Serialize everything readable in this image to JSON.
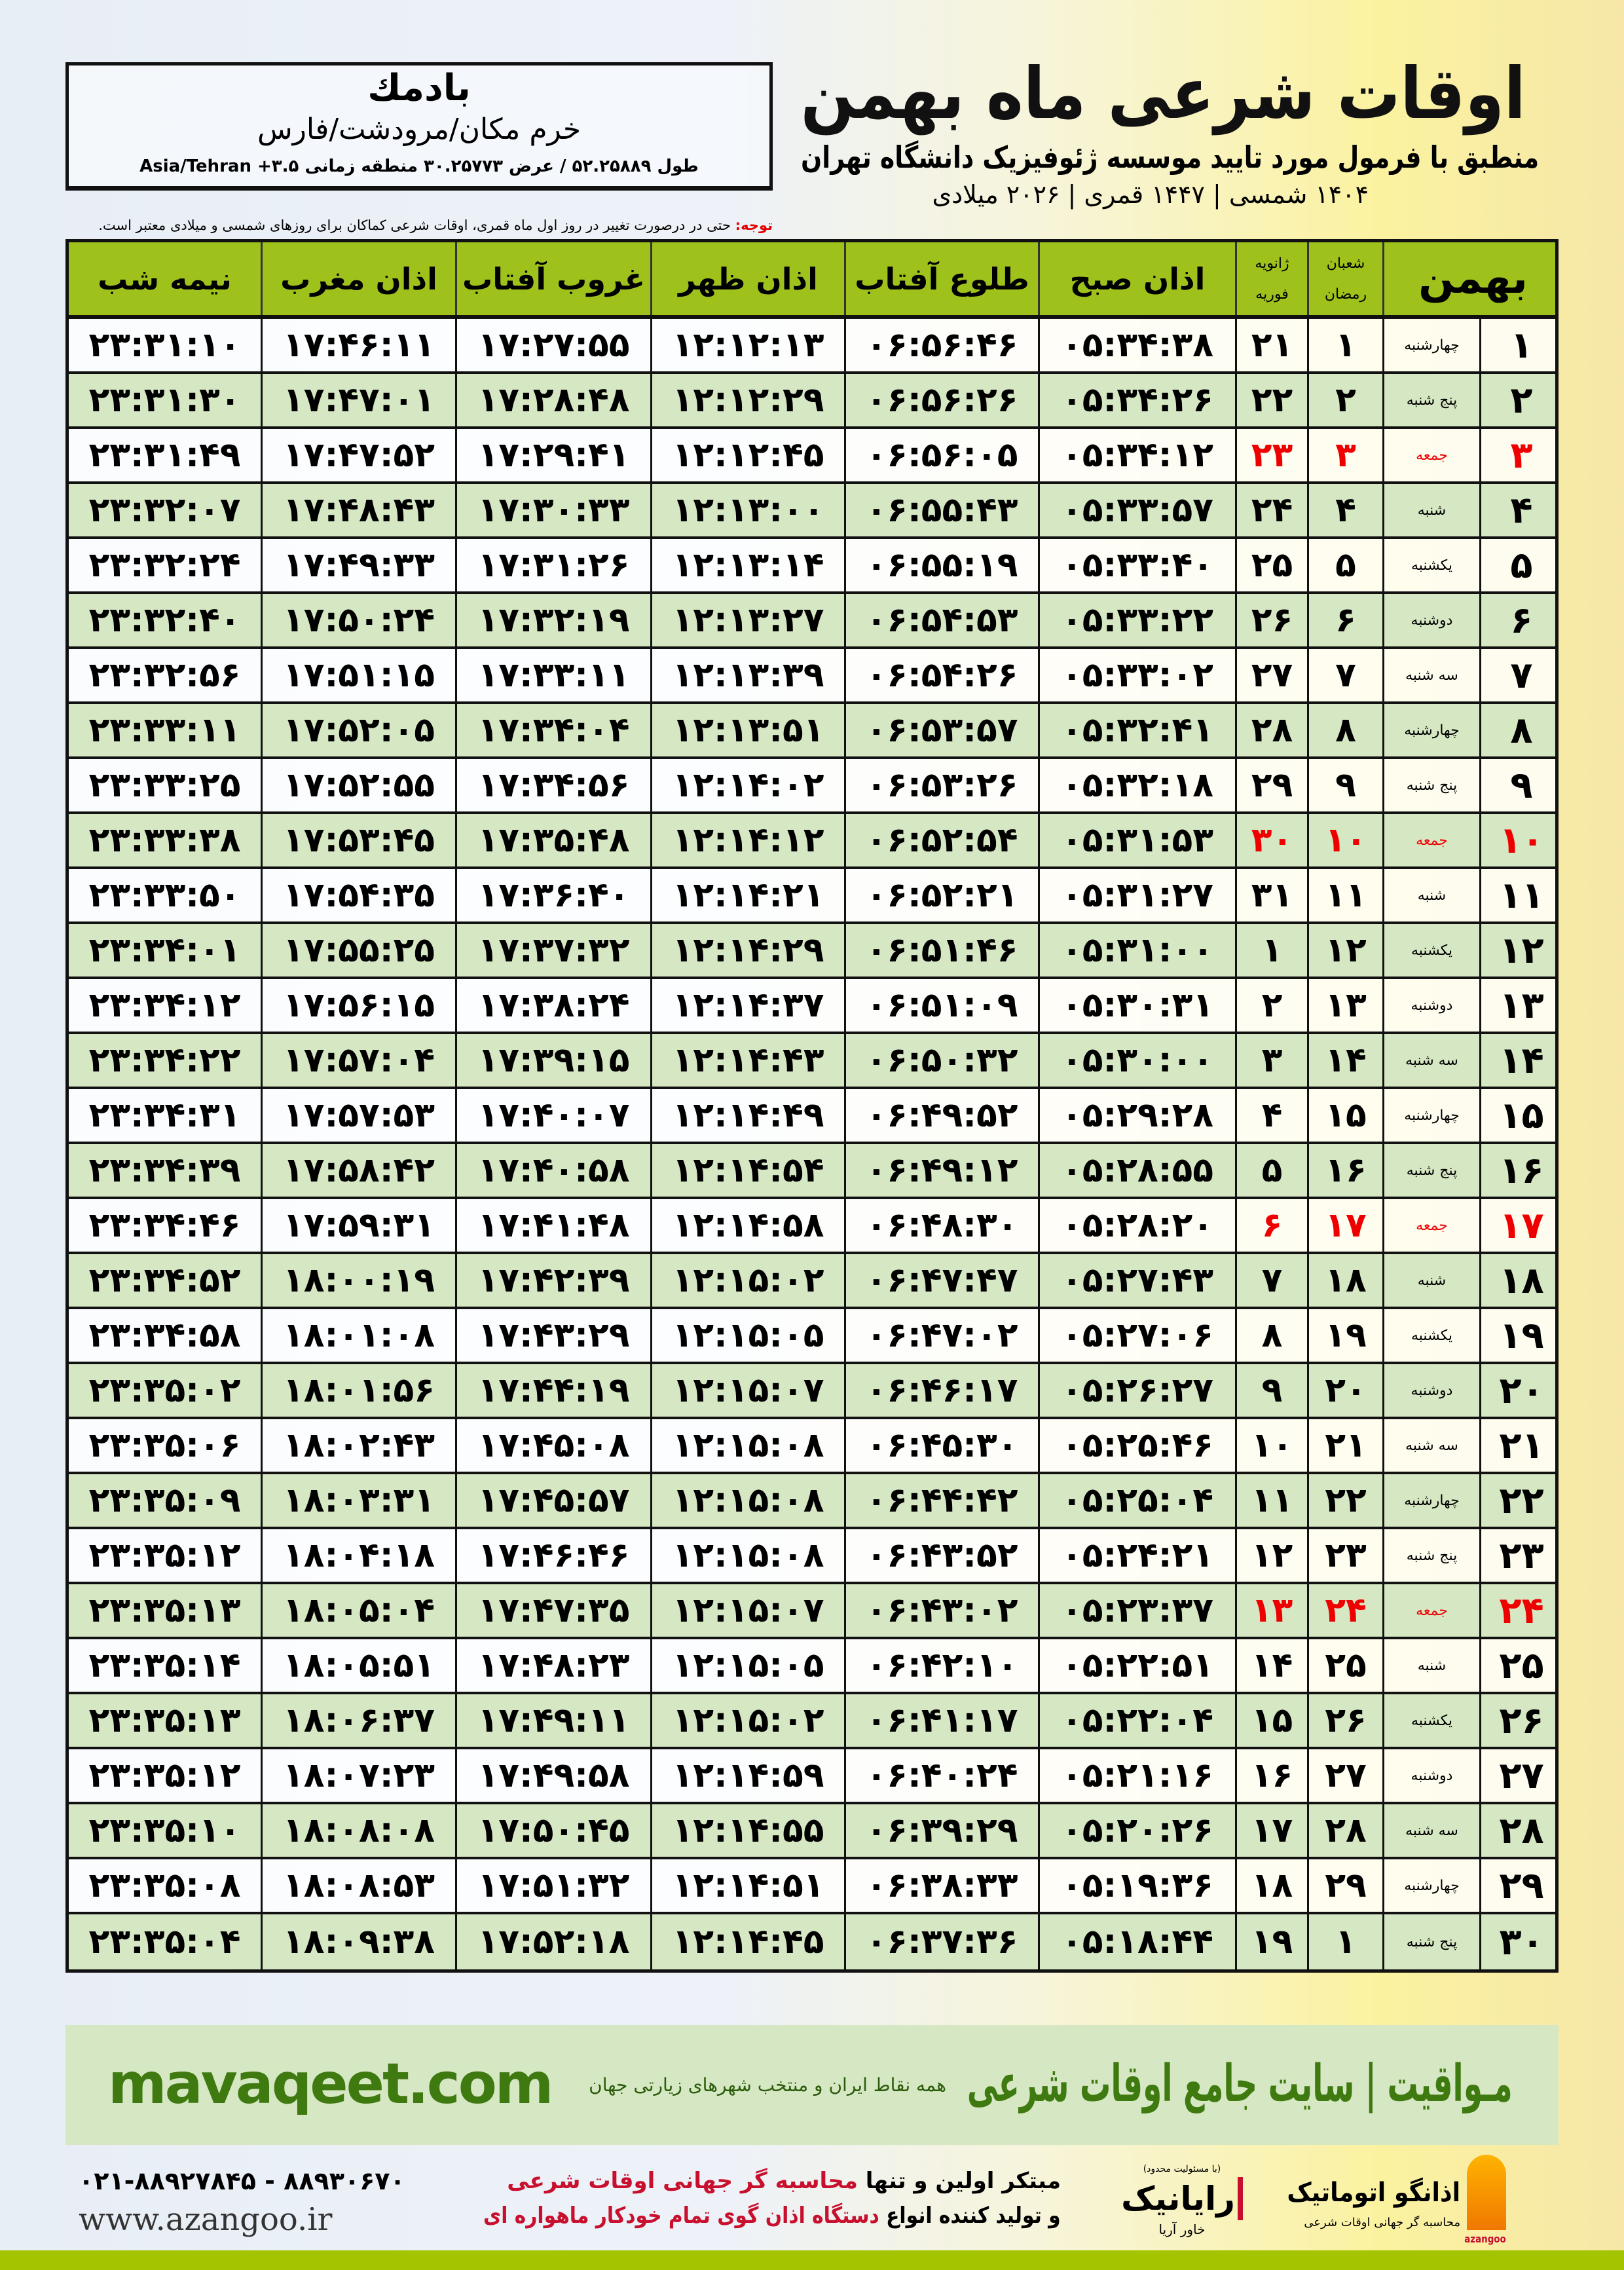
{
  "location": {
    "name": "بادمك",
    "path": "خرم مکان/مرودشت/فارس",
    "coords": "طول ۵۲.۲۵۸۸۹ / عرض ۳۰.۲۵۷۷۳ منطقه زمانی ۳.۵+ Asia/Tehran"
  },
  "header": {
    "title": "اوقات شرعی ماه بهمن",
    "subtitle": "منطبق با فرمول مورد تایید موسسه ژئوفیزیک دانشگاه تهران",
    "dates": "۱۴۰۴ شمسی | ۱۴۴۷ قمری | ۲۰۲۶ میلادی"
  },
  "note": {
    "label": "توجه:",
    "text": " حتی در درصورت تغییر در روز اول ماه قمری، اوقات شرعی کماکان برای روزهای شمسی و میلادی معتبر است."
  },
  "table": {
    "columns": {
      "midnight": "نیمه شب",
      "maghrib": "اذان مغرب",
      "sunset": "غروب آفتاب",
      "dhuhr": "اذان ظهر",
      "sunrise": "طلوع آفتاب",
      "fajr": "اذان صبح",
      "greg_top": "ژانویه",
      "greg_bottom": "فوریه",
      "qamari_top": "شعبان",
      "qamari_bottom": "رمضان",
      "month": "بهمن"
    },
    "friday_color": "#ee0000",
    "rows": [
      [
        "۱",
        "چهارشنبه",
        "۱",
        "۲۱",
        "۰۵:۳۴:۳۸",
        "۰۶:۵۶:۴۶",
        "۱۲:۱۲:۱۳",
        "۱۷:۲۷:۵۵",
        "۱۷:۴۶:۱۱",
        "۲۳:۳۱:۱۰"
      ],
      [
        "۲",
        "پنج شنبه",
        "۲",
        "۲۲",
        "۰۵:۳۴:۲۶",
        "۰۶:۵۶:۲۶",
        "۱۲:۱۲:۲۹",
        "۱۷:۲۸:۴۸",
        "۱۷:۴۷:۰۱",
        "۲۳:۳۱:۳۰"
      ],
      [
        "۳",
        "جمعه",
        "۳",
        "۲۳",
        "۰۵:۳۴:۱۲",
        "۰۶:۵۶:۰۵",
        "۱۲:۱۲:۴۵",
        "۱۷:۲۹:۴۱",
        "۱۷:۴۷:۵۲",
        "۲۳:۳۱:۴۹"
      ],
      [
        "۴",
        "شنبه",
        "۴",
        "۲۴",
        "۰۵:۳۳:۵۷",
        "۰۶:۵۵:۴۳",
        "۱۲:۱۳:۰۰",
        "۱۷:۳۰:۳۳",
        "۱۷:۴۸:۴۳",
        "۲۳:۳۲:۰۷"
      ],
      [
        "۵",
        "یکشنبه",
        "۵",
        "۲۵",
        "۰۵:۳۳:۴۰",
        "۰۶:۵۵:۱۹",
        "۱۲:۱۳:۱۴",
        "۱۷:۳۱:۲۶",
        "۱۷:۴۹:۳۳",
        "۲۳:۳۲:۲۴"
      ],
      [
        "۶",
        "دوشنبه",
        "۶",
        "۲۶",
        "۰۵:۳۳:۲۲",
        "۰۶:۵۴:۵۳",
        "۱۲:۱۳:۲۷",
        "۱۷:۳۲:۱۹",
        "۱۷:۵۰:۲۴",
        "۲۳:۳۲:۴۰"
      ],
      [
        "۷",
        "سه شنبه",
        "۷",
        "۲۷",
        "۰۵:۳۳:۰۲",
        "۰۶:۵۴:۲۶",
        "۱۲:۱۳:۳۹",
        "۱۷:۳۳:۱۱",
        "۱۷:۵۱:۱۵",
        "۲۳:۳۲:۵۶"
      ],
      [
        "۸",
        "چهارشنبه",
        "۸",
        "۲۸",
        "۰۵:۳۲:۴۱",
        "۰۶:۵۳:۵۷",
        "۱۲:۱۳:۵۱",
        "۱۷:۳۴:۰۴",
        "۱۷:۵۲:۰۵",
        "۲۳:۳۳:۱۱"
      ],
      [
        "۹",
        "پنج شنبه",
        "۹",
        "۲۹",
        "۰۵:۳۲:۱۸",
        "۰۶:۵۳:۲۶",
        "۱۲:۱۴:۰۲",
        "۱۷:۳۴:۵۶",
        "۱۷:۵۲:۵۵",
        "۲۳:۳۳:۲۵"
      ],
      [
        "۱۰",
        "جمعه",
        "۱۰",
        "۳۰",
        "۰۵:۳۱:۵۳",
        "۰۶:۵۲:۵۴",
        "۱۲:۱۴:۱۲",
        "۱۷:۳۵:۴۸",
        "۱۷:۵۳:۴۵",
        "۲۳:۳۳:۳۸"
      ],
      [
        "۱۱",
        "شنبه",
        "۱۱",
        "۳۱",
        "۰۵:۳۱:۲۷",
        "۰۶:۵۲:۲۱",
        "۱۲:۱۴:۲۱",
        "۱۷:۳۶:۴۰",
        "۱۷:۵۴:۳۵",
        "۲۳:۳۳:۵۰"
      ],
      [
        "۱۲",
        "یکشنبه",
        "۱۲",
        "۱",
        "۰۵:۳۱:۰۰",
        "۰۶:۵۱:۴۶",
        "۱۲:۱۴:۲۹",
        "۱۷:۳۷:۳۲",
        "۱۷:۵۵:۲۵",
        "۲۳:۳۴:۰۱"
      ],
      [
        "۱۳",
        "دوشنبه",
        "۱۳",
        "۲",
        "۰۵:۳۰:۳۱",
        "۰۶:۵۱:۰۹",
        "۱۲:۱۴:۳۷",
        "۱۷:۳۸:۲۴",
        "۱۷:۵۶:۱۵",
        "۲۳:۳۴:۱۲"
      ],
      [
        "۱۴",
        "سه شنبه",
        "۱۴",
        "۳",
        "۰۵:۳۰:۰۰",
        "۰۶:۵۰:۳۲",
        "۱۲:۱۴:۴۳",
        "۱۷:۳۹:۱۵",
        "۱۷:۵۷:۰۴",
        "۲۳:۳۴:۲۲"
      ],
      [
        "۱۵",
        "چهارشنبه",
        "۱۵",
        "۴",
        "۰۵:۲۹:۲۸",
        "۰۶:۴۹:۵۲",
        "۱۲:۱۴:۴۹",
        "۱۷:۴۰:۰۷",
        "۱۷:۵۷:۵۳",
        "۲۳:۳۴:۳۱"
      ],
      [
        "۱۶",
        "پنج شنبه",
        "۱۶",
        "۵",
        "۰۵:۲۸:۵۵",
        "۰۶:۴۹:۱۲",
        "۱۲:۱۴:۵۴",
        "۱۷:۴۰:۵۸",
        "۱۷:۵۸:۴۲",
        "۲۳:۳۴:۳۹"
      ],
      [
        "۱۷",
        "جمعه",
        "۱۷",
        "۶",
        "۰۵:۲۸:۲۰",
        "۰۶:۴۸:۳۰",
        "۱۲:۱۴:۵۸",
        "۱۷:۴۱:۴۸",
        "۱۷:۵۹:۳۱",
        "۲۳:۳۴:۴۶"
      ],
      [
        "۱۸",
        "شنبه",
        "۱۸",
        "۷",
        "۰۵:۲۷:۴۳",
        "۰۶:۴۷:۴۷",
        "۱۲:۱۵:۰۲",
        "۱۷:۴۲:۳۹",
        "۱۸:۰۰:۱۹",
        "۲۳:۳۴:۵۲"
      ],
      [
        "۱۹",
        "یکشنبه",
        "۱۹",
        "۸",
        "۰۵:۲۷:۰۶",
        "۰۶:۴۷:۰۲",
        "۱۲:۱۵:۰۵",
        "۱۷:۴۳:۲۹",
        "۱۸:۰۱:۰۸",
        "۲۳:۳۴:۵۸"
      ],
      [
        "۲۰",
        "دوشنبه",
        "۲۰",
        "۹",
        "۰۵:۲۶:۲۷",
        "۰۶:۴۶:۱۷",
        "۱۲:۱۵:۰۷",
        "۱۷:۴۴:۱۹",
        "۱۸:۰۱:۵۶",
        "۲۳:۳۵:۰۲"
      ],
      [
        "۲۱",
        "سه شنبه",
        "۲۱",
        "۱۰",
        "۰۵:۲۵:۴۶",
        "۰۶:۴۵:۳۰",
        "۱۲:۱۵:۰۸",
        "۱۷:۴۵:۰۸",
        "۱۸:۰۲:۴۳",
        "۲۳:۳۵:۰۶"
      ],
      [
        "۲۲",
        "چهارشنبه",
        "۲۲",
        "۱۱",
        "۰۵:۲۵:۰۴",
        "۰۶:۴۴:۴۲",
        "۱۲:۱۵:۰۸",
        "۱۷:۴۵:۵۷",
        "۱۸:۰۳:۳۱",
        "۲۳:۳۵:۰۹"
      ],
      [
        "۲۳",
        "پنج شنبه",
        "۲۳",
        "۱۲",
        "۰۵:۲۴:۲۱",
        "۰۶:۴۳:۵۲",
        "۱۲:۱۵:۰۸",
        "۱۷:۴۶:۴۶",
        "۱۸:۰۴:۱۸",
        "۲۳:۳۵:۱۲"
      ],
      [
        "۲۴",
        "جمعه",
        "۲۴",
        "۱۳",
        "۰۵:۲۳:۳۷",
        "۰۶:۴۳:۰۲",
        "۱۲:۱۵:۰۷",
        "۱۷:۴۷:۳۵",
        "۱۸:۰۵:۰۴",
        "۲۳:۳۵:۱۳"
      ],
      [
        "۲۵",
        "شنبه",
        "۲۵",
        "۱۴",
        "۰۵:۲۲:۵۱",
        "۰۶:۴۲:۱۰",
        "۱۲:۱۵:۰۵",
        "۱۷:۴۸:۲۳",
        "۱۸:۰۵:۵۱",
        "۲۳:۳۵:۱۴"
      ],
      [
        "۲۶",
        "یکشنبه",
        "۲۶",
        "۱۵",
        "۰۵:۲۲:۰۴",
        "۰۶:۴۱:۱۷",
        "۱۲:۱۵:۰۲",
        "۱۷:۴۹:۱۱",
        "۱۸:۰۶:۳۷",
        "۲۳:۳۵:۱۳"
      ],
      [
        "۲۷",
        "دوشنبه",
        "۲۷",
        "۱۶",
        "۰۵:۲۱:۱۶",
        "۰۶:۴۰:۲۴",
        "۱۲:۱۴:۵۹",
        "۱۷:۴۹:۵۸",
        "۱۸:۰۷:۲۳",
        "۲۳:۳۵:۱۲"
      ],
      [
        "۲۸",
        "سه شنبه",
        "۲۸",
        "۱۷",
        "۰۵:۲۰:۲۶",
        "۰۶:۳۹:۲۹",
        "۱۲:۱۴:۵۵",
        "۱۷:۵۰:۴۵",
        "۱۸:۰۸:۰۸",
        "۲۳:۳۵:۱۰"
      ],
      [
        "۲۹",
        "چهارشنبه",
        "۲۹",
        "۱۸",
        "۰۵:۱۹:۳۶",
        "۰۶:۳۸:۳۳",
        "۱۲:۱۴:۵۱",
        "۱۷:۵۱:۳۲",
        "۱۸:۰۸:۵۳",
        "۲۳:۳۵:۰۸"
      ],
      [
        "۳۰",
        "پنج شنبه",
        "۱",
        "۱۹",
        "۰۵:۱۸:۴۴",
        "۰۶:۳۷:۳۶",
        "۱۲:۱۴:۴۵",
        "۱۷:۵۲:۱۸",
        "۱۸:۰۹:۳۸",
        "۲۳:۳۵:۰۴"
      ]
    ]
  },
  "footer": {
    "site": "mavaqeet.com",
    "brand": "مـواقیت | سایت جامع اوقات شرعی",
    "brand_sub": "همه نقاط ایران و منتخب شهرهای زیارتی جهان",
    "phone": "۰۲۱-۸۸۹۲۷۸۴۵ - ۸۸۹۳۰۶۷۰",
    "web": "www.azangoo.ir",
    "promo1_a": "مبتکر اولین و تنها ",
    "promo1_b": "محاسبه گر جهانی اوقات شرعی",
    "promo2_a": "و تولید کننده انواع ",
    "promo2_b": "دستگاه اذان گوی تمام خودکار ماهواره ای",
    "rayanik": "رایانیک",
    "rayanik_sub": "خاور آریا",
    "rayanik_top": "(با مسئولیت محدود)",
    "azangoo": "اذانگو اتوماتیک",
    "azangoo_sub": "محاسبه گر جهانی اوقات شرعی",
    "azangoo_latin": "azangoo",
    "accent": "#3f7a10",
    "promo_color": "#c8102e"
  }
}
